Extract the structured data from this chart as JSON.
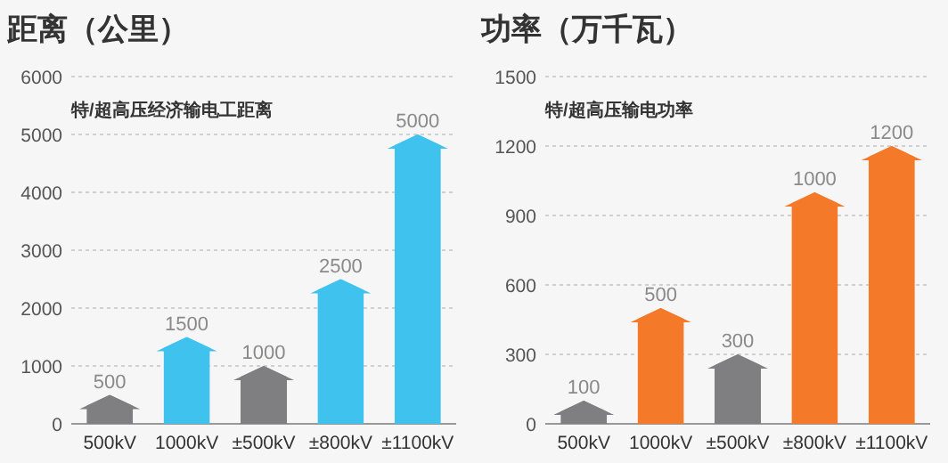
{
  "chart_data": [
    {
      "type": "bar",
      "title": "距离（公里）",
      "subtitle": "特/超高压经济输电工距离",
      "categories": [
        "500kV",
        "1000kV",
        "±500kV",
        "±800kV",
        "±1100kV"
      ],
      "values": [
        500,
        1500,
        1000,
        2500,
        5000
      ],
      "colors": [
        "#7f7f82",
        "#3fc3ee",
        "#7f7f82",
        "#3fc3ee",
        "#3fc3ee"
      ],
      "ylim": [
        0,
        6000
      ],
      "yticks": [
        0,
        1000,
        2000,
        3000,
        4000,
        5000,
        6000
      ],
      "grid": "y",
      "data_labels": true
    },
    {
      "type": "bar",
      "title": "功率（万千瓦）",
      "subtitle": "特/超高压输电功率",
      "categories": [
        "500kV",
        "1000kV",
        "±500kV",
        "±800kV",
        "±1100kV"
      ],
      "values": [
        100,
        500,
        300,
        1000,
        1200
      ],
      "colors": [
        "#7f7f82",
        "#f47a2a",
        "#7f7f82",
        "#f47a2a",
        "#f47a2a"
      ],
      "ylim": [
        0,
        1500
      ],
      "yticks": [
        0,
        300,
        600,
        900,
        1200,
        1500
      ],
      "grid": "y",
      "data_labels": true
    }
  ]
}
